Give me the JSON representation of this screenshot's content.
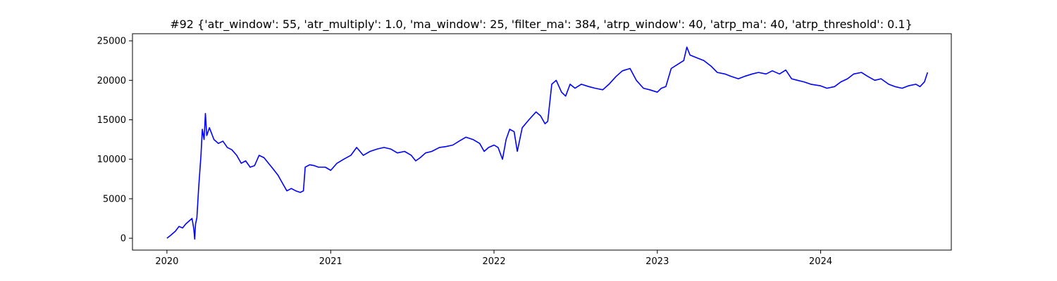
{
  "chart_data": {
    "type": "line",
    "title": "#92 {'atr_window': 55, 'atr_multiply': 1.0, 'ma_window': 25, 'filter_ma': 384, 'atrp_window': 40, 'atrp_ma': 40, 'atrp_threshold': 0.1}",
    "xlabel": "",
    "ylabel": "",
    "x_ticks": [
      "2020",
      "2021",
      "2022",
      "2023",
      "2024"
    ],
    "x_tick_values": [
      "2020-01-01",
      "2021-01-01",
      "2022-01-01",
      "2023-01-01",
      "2024-01-01"
    ],
    "y_ticks": [
      0,
      5000,
      10000,
      15000,
      20000,
      25000
    ],
    "xlim": [
      "2019-10-16",
      "2024-10-19"
    ],
    "ylim": [
      -1500,
      25900
    ],
    "grid": false,
    "legend": "none",
    "series": [
      {
        "color": "#0000ff",
        "points": [
          [
            "2020-01-01",
            0
          ],
          [
            "2020-01-10",
            400
          ],
          [
            "2020-01-20",
            900
          ],
          [
            "2020-01-28",
            1500
          ],
          [
            "2020-02-05",
            1300
          ],
          [
            "2020-02-12",
            1800
          ],
          [
            "2020-02-20",
            2200
          ],
          [
            "2020-02-26",
            2500
          ],
          [
            "2020-03-01",
            1200
          ],
          [
            "2020-03-03",
            -100
          ],
          [
            "2020-03-05",
            1800
          ],
          [
            "2020-03-08",
            2600
          ],
          [
            "2020-03-12",
            6500
          ],
          [
            "2020-03-17",
            10500
          ],
          [
            "2020-03-20",
            13800
          ],
          [
            "2020-03-24",
            12500
          ],
          [
            "2020-03-27",
            15800
          ],
          [
            "2020-03-30",
            13000
          ],
          [
            "2020-04-05",
            14000
          ],
          [
            "2020-04-15",
            12500
          ],
          [
            "2020-04-25",
            12000
          ],
          [
            "2020-05-05",
            12300
          ],
          [
            "2020-05-15",
            11500
          ],
          [
            "2020-05-25",
            11200
          ],
          [
            "2020-06-05",
            10500
          ],
          [
            "2020-06-15",
            9500
          ],
          [
            "2020-06-25",
            9800
          ],
          [
            "2020-07-05",
            9000
          ],
          [
            "2020-07-15",
            9200
          ],
          [
            "2020-07-25",
            10500
          ],
          [
            "2020-08-05",
            10200
          ],
          [
            "2020-08-15",
            9500
          ],
          [
            "2020-08-25",
            8800
          ],
          [
            "2020-09-05",
            8000
          ],
          [
            "2020-09-15",
            7000
          ],
          [
            "2020-09-25",
            6000
          ],
          [
            "2020-10-05",
            6300
          ],
          [
            "2020-10-15",
            6000
          ],
          [
            "2020-10-25",
            5800
          ],
          [
            "2020-11-01",
            6000
          ],
          [
            "2020-11-05",
            9000
          ],
          [
            "2020-11-15",
            9300
          ],
          [
            "2020-11-25",
            9200
          ],
          [
            "2020-12-05",
            9000
          ],
          [
            "2020-12-20",
            9000
          ],
          [
            "2021-01-01",
            8600
          ],
          [
            "2021-01-15",
            9500
          ],
          [
            "2021-01-30",
            10000
          ],
          [
            "2021-02-15",
            10500
          ],
          [
            "2021-02-28",
            11500
          ],
          [
            "2021-03-15",
            10500
          ],
          [
            "2021-03-30",
            11000
          ],
          [
            "2021-04-15",
            11300
          ],
          [
            "2021-04-30",
            11500
          ],
          [
            "2021-05-15",
            11300
          ],
          [
            "2021-05-30",
            10800
          ],
          [
            "2021-06-15",
            11000
          ],
          [
            "2021-06-30",
            10500
          ],
          [
            "2021-07-10",
            9800
          ],
          [
            "2021-07-20",
            10200
          ],
          [
            "2021-08-01",
            10800
          ],
          [
            "2021-08-15",
            11000
          ],
          [
            "2021-09-01",
            11500
          ],
          [
            "2021-09-15",
            11600
          ],
          [
            "2021-10-01",
            11800
          ],
          [
            "2021-10-15",
            12300
          ],
          [
            "2021-10-30",
            12800
          ],
          [
            "2021-11-15",
            12500
          ],
          [
            "2021-11-30",
            12000
          ],
          [
            "2021-12-10",
            11000
          ],
          [
            "2021-12-20",
            11500
          ],
          [
            "2022-01-01",
            11800
          ],
          [
            "2022-01-10",
            11500
          ],
          [
            "2022-01-20",
            10000
          ],
          [
            "2022-01-28",
            12500
          ],
          [
            "2022-02-05",
            13800
          ],
          [
            "2022-02-15",
            13500
          ],
          [
            "2022-02-22",
            11000
          ],
          [
            "2022-03-05",
            14000
          ],
          [
            "2022-03-20",
            15000
          ],
          [
            "2022-04-05",
            16000
          ],
          [
            "2022-04-15",
            15500
          ],
          [
            "2022-04-25",
            14500
          ],
          [
            "2022-05-01",
            14800
          ],
          [
            "2022-05-10",
            19500
          ],
          [
            "2022-05-20",
            20000
          ],
          [
            "2022-06-01",
            18500
          ],
          [
            "2022-06-10",
            18000
          ],
          [
            "2022-06-20",
            19500
          ],
          [
            "2022-07-01",
            19000
          ],
          [
            "2022-07-15",
            19500
          ],
          [
            "2022-08-01",
            19200
          ],
          [
            "2022-08-15",
            19000
          ],
          [
            "2022-09-01",
            18800
          ],
          [
            "2022-09-15",
            19500
          ],
          [
            "2022-10-01",
            20500
          ],
          [
            "2022-10-15",
            21200
          ],
          [
            "2022-11-01",
            21500
          ],
          [
            "2022-11-15",
            20000
          ],
          [
            "2022-12-01",
            19000
          ],
          [
            "2022-12-15",
            18800
          ],
          [
            "2023-01-01",
            18500
          ],
          [
            "2023-01-10",
            19000
          ],
          [
            "2023-01-20",
            19200
          ],
          [
            "2023-02-01",
            21500
          ],
          [
            "2023-02-15",
            22000
          ],
          [
            "2023-03-01",
            22500
          ],
          [
            "2023-03-08",
            24200
          ],
          [
            "2023-03-15",
            23200
          ],
          [
            "2023-04-01",
            22800
          ],
          [
            "2023-04-15",
            22500
          ],
          [
            "2023-05-01",
            21800
          ],
          [
            "2023-05-15",
            21000
          ],
          [
            "2023-06-01",
            20800
          ],
          [
            "2023-06-15",
            20500
          ],
          [
            "2023-07-01",
            20200
          ],
          [
            "2023-07-15",
            20500
          ],
          [
            "2023-08-01",
            20800
          ],
          [
            "2023-08-15",
            21000
          ],
          [
            "2023-09-01",
            20800
          ],
          [
            "2023-09-15",
            21200
          ],
          [
            "2023-10-01",
            20800
          ],
          [
            "2023-10-15",
            21300
          ],
          [
            "2023-10-28",
            20200
          ],
          [
            "2023-11-10",
            20000
          ],
          [
            "2023-11-25",
            19800
          ],
          [
            "2023-12-10",
            19500
          ],
          [
            "2024-01-01",
            19300
          ],
          [
            "2024-01-15",
            19000
          ],
          [
            "2024-02-01",
            19200
          ],
          [
            "2024-02-15",
            19800
          ],
          [
            "2024-03-01",
            20200
          ],
          [
            "2024-03-15",
            20800
          ],
          [
            "2024-04-01",
            21000
          ],
          [
            "2024-04-15",
            20500
          ],
          [
            "2024-05-01",
            20000
          ],
          [
            "2024-05-15",
            20200
          ],
          [
            "2024-06-01",
            19500
          ],
          [
            "2024-06-15",
            19200
          ],
          [
            "2024-07-01",
            19000
          ],
          [
            "2024-07-15",
            19300
          ],
          [
            "2024-08-01",
            19500
          ],
          [
            "2024-08-10",
            19200
          ],
          [
            "2024-08-20",
            19800
          ],
          [
            "2024-08-27",
            21000
          ]
        ]
      }
    ]
  }
}
